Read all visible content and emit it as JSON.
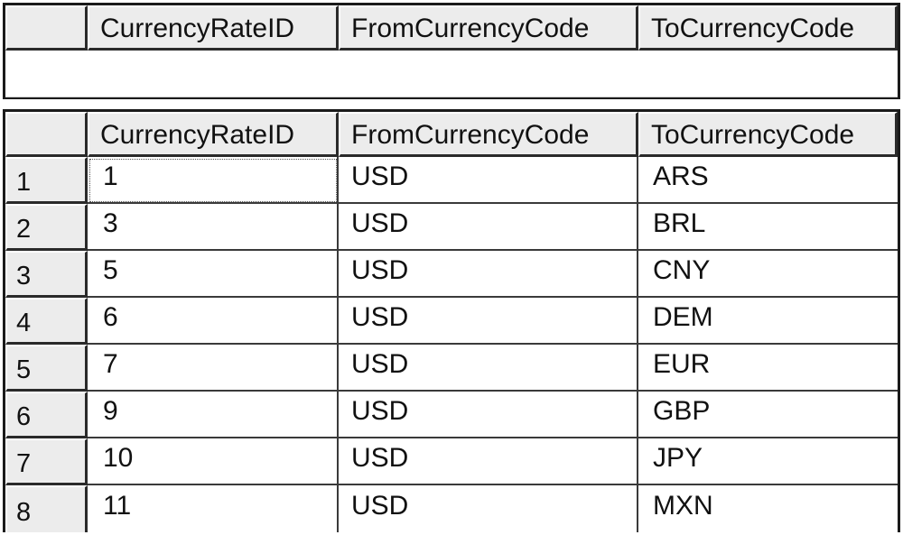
{
  "results_top": {
    "columns": [
      "CurrencyRateID",
      "FromCurrencyCode",
      "ToCurrencyCode"
    ]
  },
  "results_bottom": {
    "columns": [
      "CurrencyRateID",
      "FromCurrencyCode",
      "ToCurrencyCode"
    ],
    "rows": [
      {
        "num": "1",
        "id": "1",
        "from": "USD",
        "to": "ARS"
      },
      {
        "num": "2",
        "id": "3",
        "from": "USD",
        "to": "BRL"
      },
      {
        "num": "3",
        "id": "5",
        "from": "USD",
        "to": "CNY"
      },
      {
        "num": "4",
        "id": "6",
        "from": "USD",
        "to": "DEM"
      },
      {
        "num": "5",
        "id": "7",
        "from": "USD",
        "to": "EUR"
      },
      {
        "num": "6",
        "id": "9",
        "from": "USD",
        "to": "GBP"
      },
      {
        "num": "7",
        "id": "10",
        "from": "USD",
        "to": "JPY"
      },
      {
        "num": "8",
        "id": "11",
        "from": "USD",
        "to": "MXN"
      }
    ]
  }
}
